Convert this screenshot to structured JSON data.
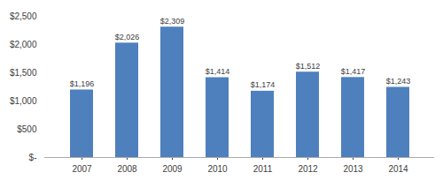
{
  "chart_data": {
    "type": "bar",
    "categories": [
      "2007",
      "2008",
      "2009",
      "2010",
      "2011",
      "2012",
      "2013",
      "2014"
    ],
    "values": [
      1196,
      2026,
      2309,
      1414,
      1174,
      1512,
      1417,
      1243
    ],
    "value_labels": [
      "$1,196",
      "$2,026",
      "$2,309",
      "$1,414",
      "$1,174",
      "$1,512",
      "$1,417",
      "$1,243"
    ],
    "data_labels": true,
    "color": "#4E80BD",
    "ylim": [
      0,
      2500
    ],
    "yticks": [
      {
        "value": 0,
        "label": "$-"
      },
      {
        "value": 500,
        "label": "$500"
      },
      {
        "value": 1000,
        "label": "$1,000"
      },
      {
        "value": 1500,
        "label": "$1,500"
      },
      {
        "value": 2000,
        "label": "$2,000"
      },
      {
        "value": 2500,
        "label": "$2,500"
      }
    ],
    "grid": false
  }
}
